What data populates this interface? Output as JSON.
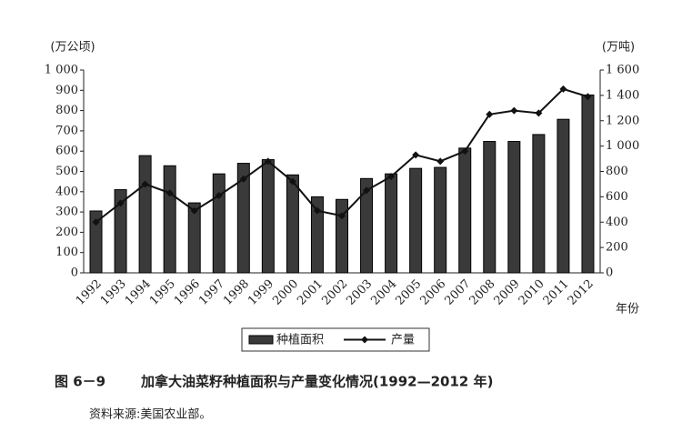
{
  "chart_data": {
    "type": "combo",
    "figure_number": "图 6－9",
    "title": "加拿大油菜籽种植面积与产量变化情况(1992—2012 年)",
    "source": "资料来源:美国农业部。",
    "y_label": "(万公顷)",
    "y2_label": "(万吨)",
    "x_label": "年份",
    "categories": [
      "1992",
      "1993",
      "1994",
      "1995",
      "1996",
      "1997",
      "1998",
      "1999",
      "2000",
      "2001",
      "2002",
      "2003",
      "2004",
      "2005",
      "2006",
      "2007",
      "2008",
      "2009",
      "2010",
      "2011",
      "2012"
    ],
    "series": [
      {
        "name": "种植面积",
        "type": "bar",
        "color": "#3a3a3a",
        "values": [
          305,
          410,
          578,
          528,
          345,
          488,
          540,
          558,
          483,
          375,
          362,
          465,
          488,
          515,
          520,
          615,
          648,
          648,
          682,
          757,
          877
        ]
      },
      {
        "name": "产量",
        "type": "line",
        "axis": "y2",
        "color": "#111111",
        "values": [
          400,
          550,
          700,
          630,
          490,
          610,
          740,
          880,
          720,
          490,
          450,
          650,
          760,
          930,
          880,
          960,
          1250,
          1280,
          1260,
          1450,
          1390
        ]
      }
    ],
    "ylim": [
      0,
      1000
    ],
    "yticks": [
      0,
      100,
      200,
      300,
      400,
      500,
      600,
      700,
      800,
      900,
      {
        "value": 1000,
        "label": "1 000"
      }
    ],
    "y2lim": [
      0,
      1600
    ],
    "y2ticks": [
      0,
      200,
      400,
      600,
      800,
      {
        "value": 1000,
        "label": "1 000"
      },
      {
        "value": 1200,
        "label": "1 200"
      },
      {
        "value": 1400,
        "label": "1 400"
      },
      {
        "value": 1600,
        "label": "1 600"
      }
    ]
  }
}
